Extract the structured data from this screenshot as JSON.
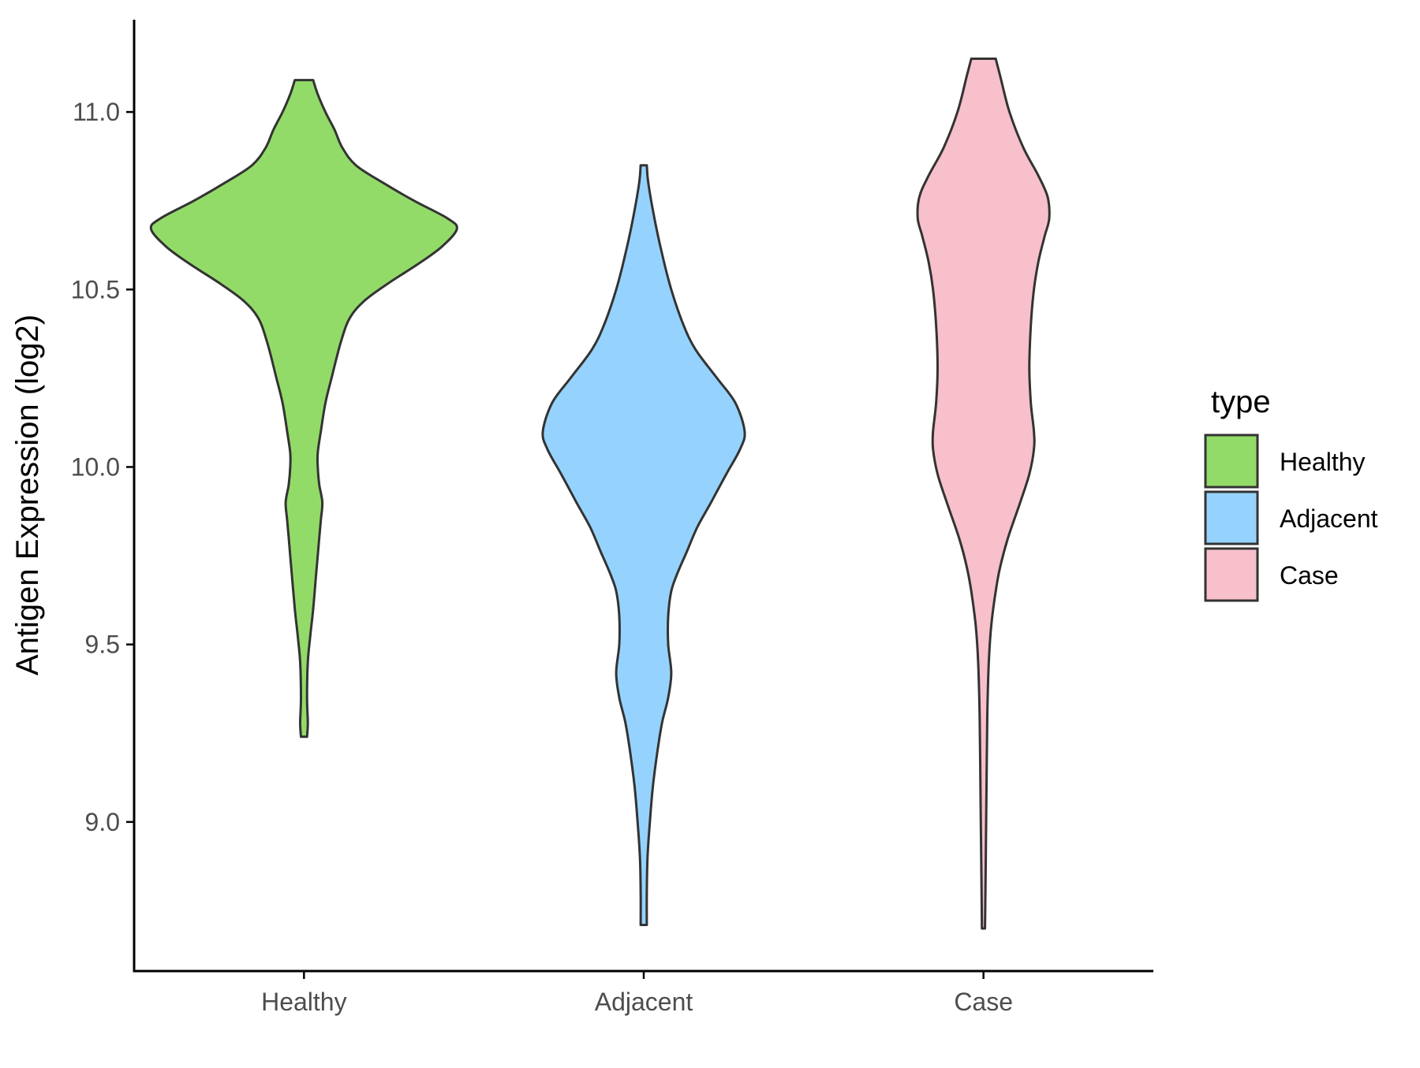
{
  "chart_data": {
    "type": "violin",
    "xlabel": "",
    "ylabel": "Antigen Expression (log2)",
    "ylim": [
      8.58,
      11.26
    ],
    "yticks": [
      9.0,
      9.5,
      10.0,
      10.5,
      11.0
    ],
    "ytick_labels": [
      "9.0",
      "9.5",
      "10.0",
      "10.5",
      "11.0"
    ],
    "categories": [
      "Healthy",
      "Adjacent",
      "Case"
    ],
    "grid": false,
    "legend": {
      "title": "type",
      "position": "right",
      "entries": [
        {
          "label": "Healthy",
          "color": "#93DB69"
        },
        {
          "label": "Adjacent",
          "color": "#95D3FE"
        },
        {
          "label": "Case",
          "color": "#F7C0CB"
        }
      ]
    },
    "series": [
      {
        "category": "Healthy",
        "color": "#93DB69",
        "min": 9.24,
        "max": 11.09,
        "density_profile": [
          [
            11.09,
            0.06
          ],
          [
            11.05,
            0.09
          ],
          [
            11.0,
            0.14
          ],
          [
            10.95,
            0.2
          ],
          [
            10.9,
            0.25
          ],
          [
            10.85,
            0.34
          ],
          [
            10.8,
            0.52
          ],
          [
            10.75,
            0.72
          ],
          [
            10.7,
            0.94
          ],
          [
            10.67,
            1.0
          ],
          [
            10.62,
            0.9
          ],
          [
            10.57,
            0.74
          ],
          [
            10.52,
            0.56
          ],
          [
            10.47,
            0.4
          ],
          [
            10.42,
            0.3
          ],
          [
            10.35,
            0.24
          ],
          [
            10.25,
            0.18
          ],
          [
            10.18,
            0.14
          ],
          [
            10.1,
            0.11
          ],
          [
            10.04,
            0.09
          ],
          [
            10.0,
            0.09
          ],
          [
            9.95,
            0.1
          ],
          [
            9.9,
            0.12
          ],
          [
            9.85,
            0.11
          ],
          [
            9.8,
            0.1
          ],
          [
            9.7,
            0.08
          ],
          [
            9.6,
            0.06
          ],
          [
            9.52,
            0.04
          ],
          [
            9.45,
            0.025
          ],
          [
            9.35,
            0.02
          ],
          [
            9.28,
            0.025
          ],
          [
            9.24,
            0.02
          ]
        ]
      },
      {
        "category": "Adjacent",
        "color": "#95D3FE",
        "min": 8.71,
        "max": 10.85,
        "density_profile": [
          [
            10.85,
            0.02
          ],
          [
            10.8,
            0.03
          ],
          [
            10.7,
            0.07
          ],
          [
            10.6,
            0.12
          ],
          [
            10.5,
            0.18
          ],
          [
            10.4,
            0.26
          ],
          [
            10.33,
            0.34
          ],
          [
            10.25,
            0.48
          ],
          [
            10.18,
            0.6
          ],
          [
            10.1,
            0.66
          ],
          [
            10.05,
            0.63
          ],
          [
            9.98,
            0.54
          ],
          [
            9.9,
            0.44
          ],
          [
            9.83,
            0.35
          ],
          [
            9.76,
            0.28
          ],
          [
            9.7,
            0.22
          ],
          [
            9.65,
            0.18
          ],
          [
            9.58,
            0.16
          ],
          [
            9.5,
            0.16
          ],
          [
            9.42,
            0.18
          ],
          [
            9.35,
            0.16
          ],
          [
            9.28,
            0.12
          ],
          [
            9.2,
            0.09
          ],
          [
            9.1,
            0.06
          ],
          [
            9.0,
            0.04
          ],
          [
            8.9,
            0.025
          ],
          [
            8.8,
            0.02
          ],
          [
            8.71,
            0.02
          ]
        ]
      },
      {
        "category": "Case",
        "color": "#F7C0CB",
        "min": 8.7,
        "max": 11.15,
        "density_profile": [
          [
            11.15,
            0.08
          ],
          [
            11.1,
            0.11
          ],
          [
            11.0,
            0.17
          ],
          [
            10.9,
            0.26
          ],
          [
            10.82,
            0.36
          ],
          [
            10.76,
            0.42
          ],
          [
            10.7,
            0.43
          ],
          [
            10.65,
            0.4
          ],
          [
            10.58,
            0.36
          ],
          [
            10.5,
            0.33
          ],
          [
            10.4,
            0.31
          ],
          [
            10.28,
            0.3
          ],
          [
            10.18,
            0.31
          ],
          [
            10.1,
            0.33
          ],
          [
            10.05,
            0.33
          ],
          [
            9.98,
            0.3
          ],
          [
            9.9,
            0.24
          ],
          [
            9.8,
            0.16
          ],
          [
            9.72,
            0.11
          ],
          [
            9.65,
            0.08
          ],
          [
            9.55,
            0.05
          ],
          [
            9.45,
            0.035
          ],
          [
            9.3,
            0.025
          ],
          [
            9.1,
            0.02
          ],
          [
            8.9,
            0.015
          ],
          [
            8.7,
            0.01
          ]
        ]
      }
    ]
  }
}
